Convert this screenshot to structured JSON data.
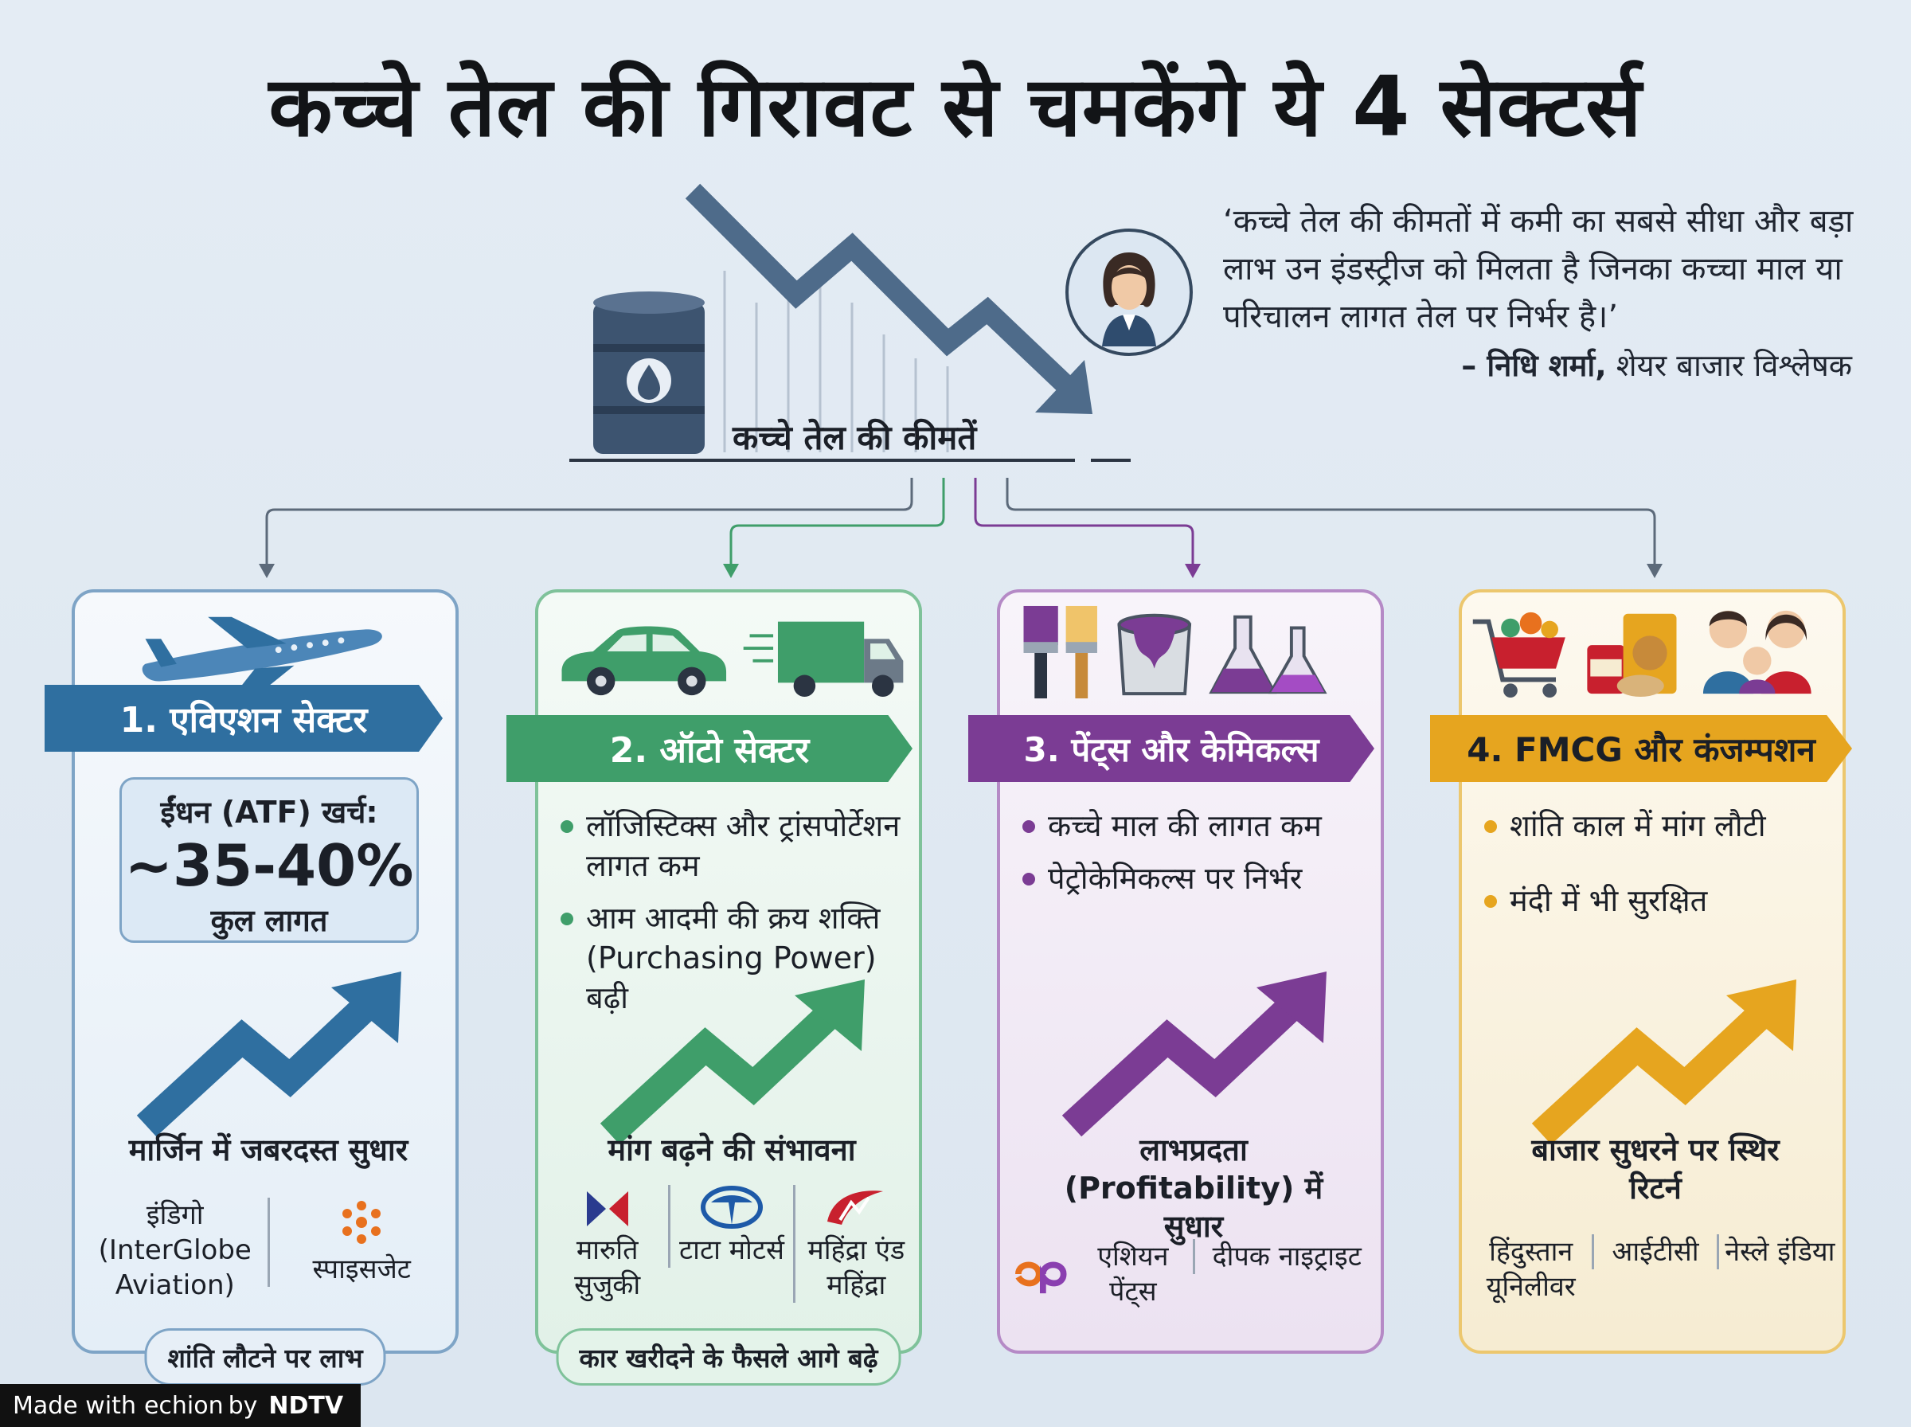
{
  "title": "कच्चे तेल की गिरावट से चमकेंगे ये 4 सेक्टर्स",
  "hero": {
    "label": "कच्चे तेल की कीमतें"
  },
  "quote": {
    "text": "‘कच्चे तेल की कीमतों में कमी का सबसे सीधा और बड़ा लाभ उन इंडस्ट्रीज को मिलता है जिनका कच्चा माल या परिचालन लागत तेल पर निर्भर है।’",
    "author_name": "– निधि शर्मा,",
    "author_role": "शेयर बाजार विश्लेषक"
  },
  "colors": {
    "aviation": "#2f6fa0",
    "auto": "#3f9e6a",
    "paints": "#7b3c94",
    "fmcg": "#e6a51f"
  },
  "sectors": [
    {
      "banner": "1. एविएशन सेक्टर",
      "stat_label": "ईंधन (ATF) खर्च:",
      "stat_value": "~35-40%",
      "stat_sub": "कुल लागत",
      "caption": "मार्जिन में जबरदस्त सुधार",
      "companies": [
        "इंडिगो (InterGlobe Aviation)",
        "स्पाइसजेट"
      ],
      "pill": "शांति लौटने पर लाभ"
    },
    {
      "banner": "2. ऑटो सेक्टर",
      "bullets": [
        "लॉजिस्टिक्स और ट्रांसपोर्टेशन लागत कम",
        "आम आदमी की क्रय शक्ति (Purchasing Power) बढ़ी"
      ],
      "caption": "मांग बढ़ने की संभावना",
      "companies": [
        "मारुति सुजुकी",
        "टाटा मोटर्स",
        "महिंद्रा एंड महिंद्रा"
      ],
      "pill": "कार खरीदने के फैसले आगे बढ़े"
    },
    {
      "banner": "3. पेंट्स और केमिकल्स",
      "bullets": [
        "कच्चे माल की लागत कम",
        "पेट्रोकेमिकल्स पर निर्भर"
      ],
      "caption": "लाभप्रदता (Profitability) में सुधार",
      "companies": [
        "एशियन पेंट्स",
        "दीपक नाइट्राइट"
      ]
    },
    {
      "banner": "4. FMCG और कंजम्पशन",
      "bullets": [
        "शांति काल में मांग लौटी",
        "मंदी में भी सुरक्षित"
      ],
      "caption": "बाजार सुधरने पर स्थिर रिटर्न",
      "companies": [
        "हिंदुस्तान यूनिलीवर",
        "आईटीसी",
        "नेस्ले इंडिया"
      ]
    }
  ],
  "footer": {
    "made_with": "Made with",
    "brand": "echion",
    "by": "by",
    "org": "NDTV"
  }
}
